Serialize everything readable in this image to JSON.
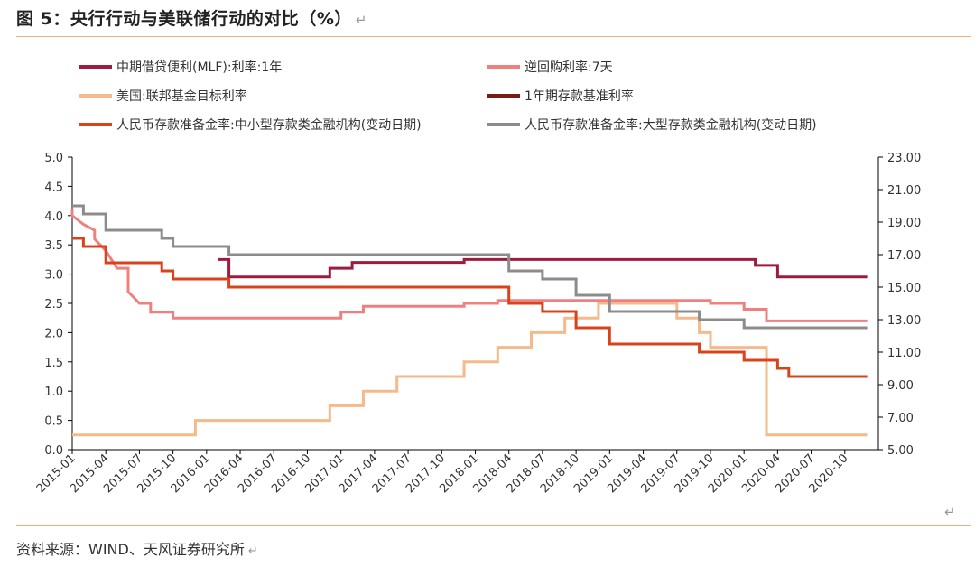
{
  "title": "图 5：央行行动与美联储行动的对比（%）",
  "source": "资料来源：WIND、天风证券研究所",
  "return_mark": "↵",
  "chart_data": {
    "type": "line",
    "left_axis": {
      "min": 0,
      "max": 5,
      "ticks": [
        "0.0",
        "0.5",
        "1.0",
        "1.5",
        "2.0",
        "2.5",
        "3.0",
        "3.5",
        "4.0",
        "4.5",
        "5.0"
      ]
    },
    "right_axis": {
      "min": 5,
      "max": 23,
      "ticks": [
        "5.00",
        "7.00",
        "9.00",
        "11.00",
        "13.00",
        "15.00",
        "17.00",
        "19.00",
        "21.00",
        "23.00"
      ]
    },
    "x_ticks": [
      "2015-01",
      "2015-04",
      "2015-07",
      "2015-10",
      "2016-01",
      "2016-04",
      "2016-07",
      "2016-10",
      "2017-01",
      "2017-04",
      "2017-07",
      "2017-10",
      "2018-01",
      "2018-04",
      "2018-07",
      "2018-10",
      "2019-01",
      "2019-04",
      "2019-07",
      "2019-10",
      "2020-01",
      "2020-04",
      "2020-07",
      "2020-10"
    ],
    "x_range": [
      "2015-01",
      "2020-12"
    ],
    "series": [
      {
        "name": "中期借贷便利(MLF):利率:1年",
        "axis": "left",
        "color": "#9e1b3c",
        "points": [
          [
            "2016-02",
            3.25
          ],
          [
            "2016-03",
            3.25
          ],
          [
            "2016-03",
            2.95
          ],
          [
            "2016-12",
            2.95
          ],
          [
            "2016-12",
            3.1
          ],
          [
            "2017-02",
            3.1
          ],
          [
            "2017-02",
            3.2
          ],
          [
            "2017-12",
            3.2
          ],
          [
            "2017-12",
            3.25
          ],
          [
            "2019-12",
            3.25
          ],
          [
            "2019-12",
            3.25
          ],
          [
            "2020-02",
            3.25
          ],
          [
            "2020-02",
            3.15
          ],
          [
            "2020-04",
            3.15
          ],
          [
            "2020-04",
            2.95
          ],
          [
            "2020-12",
            2.95
          ]
        ]
      },
      {
        "name": "逆回购利率:7天",
        "axis": "left",
        "color": "#f08080",
        "points": [
          [
            "2015-01",
            4.1
          ],
          [
            "2015-01",
            4.0
          ],
          [
            "2015-02",
            3.85
          ],
          [
            "2015-03",
            3.75
          ],
          [
            "2015-03",
            3.6
          ],
          [
            "2015-04",
            3.4
          ],
          [
            "2015-05",
            3.1
          ],
          [
            "2015-06",
            3.1
          ],
          [
            "2015-06",
            2.7
          ],
          [
            "2015-07",
            2.5
          ],
          [
            "2015-08",
            2.5
          ],
          [
            "2015-08",
            2.35
          ],
          [
            "2015-10",
            2.35
          ],
          [
            "2015-10",
            2.25
          ],
          [
            "2016-12",
            2.25
          ],
          [
            "2016-12",
            2.25
          ],
          [
            "2017-01",
            2.25
          ],
          [
            "2017-01",
            2.35
          ],
          [
            "2017-03",
            2.35
          ],
          [
            "2017-03",
            2.45
          ],
          [
            "2017-12",
            2.45
          ],
          [
            "2017-12",
            2.5
          ],
          [
            "2018-03",
            2.5
          ],
          [
            "2018-03",
            2.55
          ],
          [
            "2019-10",
            2.55
          ],
          [
            "2019-10",
            2.5
          ],
          [
            "2020-01",
            2.5
          ],
          [
            "2020-01",
            2.4
          ],
          [
            "2020-03",
            2.4
          ],
          [
            "2020-03",
            2.2
          ],
          [
            "2020-12",
            2.2
          ]
        ]
      },
      {
        "name": "美国:联邦基金目标利率",
        "axis": "left",
        "color": "#f6b98a",
        "points": [
          [
            "2015-01",
            0.25
          ],
          [
            "2015-12",
            0.25
          ],
          [
            "2015-12",
            0.5
          ],
          [
            "2016-12",
            0.5
          ],
          [
            "2016-12",
            0.75
          ],
          [
            "2017-03",
            0.75
          ],
          [
            "2017-03",
            1.0
          ],
          [
            "2017-06",
            1.0
          ],
          [
            "2017-06",
            1.25
          ],
          [
            "2017-12",
            1.25
          ],
          [
            "2017-12",
            1.5
          ],
          [
            "2018-03",
            1.5
          ],
          [
            "2018-03",
            1.75
          ],
          [
            "2018-06",
            1.75
          ],
          [
            "2018-06",
            2.0
          ],
          [
            "2018-09",
            2.0
          ],
          [
            "2018-09",
            2.25
          ],
          [
            "2018-12",
            2.25
          ],
          [
            "2018-12",
            2.5
          ],
          [
            "2019-07",
            2.5
          ],
          [
            "2019-07",
            2.25
          ],
          [
            "2019-09",
            2.25
          ],
          [
            "2019-09",
            2.0
          ],
          [
            "2019-10",
            2.0
          ],
          [
            "2019-10",
            1.75
          ],
          [
            "2020-03",
            1.75
          ],
          [
            "2020-03",
            1.25
          ],
          [
            "2020-03",
            0.25
          ],
          [
            "2020-12",
            0.25
          ]
        ]
      },
      {
        "name": "1年期存款基准利率",
        "axis": "left",
        "color": "#7b1a12",
        "points": []
      },
      {
        "name": "人民币存款准备金率:中小型存款类金融机构(变动日期)",
        "axis": "right",
        "color": "#d8431c",
        "points": [
          [
            "2015-01",
            18.0
          ],
          [
            "2015-02",
            18.0
          ],
          [
            "2015-02",
            17.5
          ],
          [
            "2015-04",
            17.5
          ],
          [
            "2015-04",
            16.5
          ],
          [
            "2015-09",
            16.5
          ],
          [
            "2015-09",
            16.0
          ],
          [
            "2015-10",
            16.0
          ],
          [
            "2015-10",
            15.5
          ],
          [
            "2016-03",
            15.5
          ],
          [
            "2016-03",
            15.0
          ],
          [
            "2018-04",
            15.0
          ],
          [
            "2018-04",
            14.0
          ],
          [
            "2018-07",
            14.0
          ],
          [
            "2018-07",
            13.5
          ],
          [
            "2018-10",
            13.5
          ],
          [
            "2018-10",
            12.5
          ],
          [
            "2019-01",
            12.5
          ],
          [
            "2019-01",
            12.0
          ],
          [
            "2019-01",
            11.5
          ],
          [
            "2019-09",
            11.5
          ],
          [
            "2019-09",
            11.0
          ],
          [
            "2020-01",
            11.0
          ],
          [
            "2020-01",
            10.5
          ],
          [
            "2020-04",
            10.5
          ],
          [
            "2020-04",
            10.0
          ],
          [
            "2020-05",
            10.0
          ],
          [
            "2020-05",
            9.5
          ],
          [
            "2020-12",
            9.5
          ]
        ]
      },
      {
        "name": "人民币存款准备金率:大型存款类金融机构(变动日期)",
        "axis": "right",
        "color": "#8c8c8c",
        "points": [
          [
            "2015-01",
            20.0
          ],
          [
            "2015-02",
            20.0
          ],
          [
            "2015-02",
            19.5
          ],
          [
            "2015-04",
            19.5
          ],
          [
            "2015-04",
            18.5
          ],
          [
            "2015-09",
            18.5
          ],
          [
            "2015-09",
            18.0
          ],
          [
            "2015-10",
            18.0
          ],
          [
            "2015-10",
            17.5
          ],
          [
            "2016-03",
            17.5
          ],
          [
            "2016-03",
            17.0
          ],
          [
            "2018-04",
            17.0
          ],
          [
            "2018-04",
            16.0
          ],
          [
            "2018-07",
            16.0
          ],
          [
            "2018-07",
            15.5
          ],
          [
            "2018-10",
            15.5
          ],
          [
            "2018-10",
            14.5
          ],
          [
            "2019-01",
            14.5
          ],
          [
            "2019-01",
            14.0
          ],
          [
            "2019-01",
            13.5
          ],
          [
            "2019-09",
            13.5
          ],
          [
            "2019-09",
            13.0
          ],
          [
            "2020-01",
            13.0
          ],
          [
            "2020-01",
            12.5
          ],
          [
            "2020-12",
            12.5
          ]
        ]
      }
    ]
  }
}
